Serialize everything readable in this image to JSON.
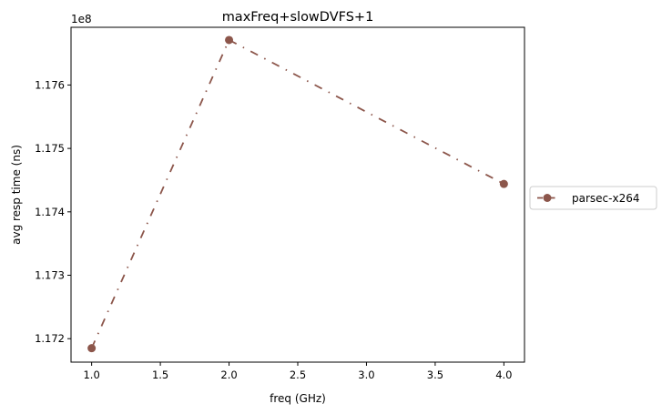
{
  "chart_data": {
    "type": "line",
    "title": "maxFreq+slowDVFS+1",
    "xlabel": "freq (GHz)",
    "ylabel": "avg resp time (ns)",
    "y_offset_label": "1e8",
    "xlim": [
      0.85,
      4.15
    ],
    "ylim": [
      1.17163,
      1.17691
    ],
    "x_ticks": [
      1.0,
      1.5,
      2.0,
      2.5,
      3.0,
      3.5,
      4.0
    ],
    "x_tick_labels": [
      "1.0",
      "1.5",
      "2.0",
      "2.5",
      "3.0",
      "3.5",
      "4.0"
    ],
    "y_ticks": [
      1.172,
      1.173,
      1.174,
      1.175,
      1.176
    ],
    "y_tick_labels": [
      "1.172",
      "1.173",
      "1.174",
      "1.175",
      "1.176"
    ],
    "grid": false,
    "legend_position": "outside-right",
    "series": [
      {
        "name": "parsec-x264",
        "color": "#8c564b",
        "line_style": "dashdot",
        "marker": "circle",
        "x": [
          1.0,
          2.0,
          4.0
        ],
        "y": [
          1.17185,
          1.17671,
          1.17444
        ]
      }
    ]
  }
}
